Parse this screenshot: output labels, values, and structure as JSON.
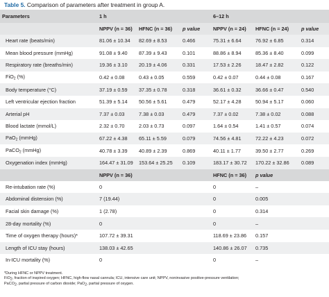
{
  "caption": {
    "label": "Table 5.",
    "text": "Comparison of parameters after treatment in group A."
  },
  "header": {
    "parameters": "Parameters",
    "period1": "1 h",
    "period2": "6–12 h",
    "cols": [
      "NPPV (n = 36)",
      "HFNC (n = 36)",
      "p value",
      "NPPV (n = 24)",
      "HFNC (n = 24)",
      "p value"
    ]
  },
  "rows1": [
    {
      "name": "Heart rate (beats/min)",
      "v": [
        "81.06 ± 10.34",
        "82.69 ± 8.53",
        "0.466",
        "75.31 ± 6.64",
        "76.92 ± 6.85",
        "0.314"
      ]
    },
    {
      "name": "Mean blood pressure (mmHg)",
      "v": [
        "91.08 ± 9.40",
        "87.39 ± 9.43",
        "0.101",
        "88.86 ± 8.94",
        "85.36 ± 8.40",
        "0.099"
      ]
    },
    {
      "name": "Respiratory rate (breaths/min)",
      "v": [
        "19.36 ± 3.10",
        "20.19 ± 4.06",
        "0.331",
        "17.53 ± 2.26",
        "18.47 ± 2.82",
        "0.122"
      ]
    },
    {
      "pre": "FiO",
      "sub": "2",
      "post": " (%)",
      "v": [
        "0.42 ± 0.08",
        "0.43 ± 0.05",
        "0.559",
        "0.42 ± 0.07",
        "0.44 ± 0.08",
        "0.167"
      ]
    },
    {
      "name": "Body temperature (°C)",
      "v": [
        "37.19 ± 0.59",
        "37.35 ± 0.78",
        "0.318",
        "36.61 ± 0.32",
        "36.66 ± 0.47",
        "0.540"
      ]
    },
    {
      "name": "Left ventricular ejection fraction",
      "v": [
        "51.39 ± 5.14",
        "50.56 ± 5.61",
        "0.479",
        "52.17 ± 4.28",
        "50.94 ± 5.17",
        "0.060"
      ]
    },
    {
      "name": "Arterial pH",
      "v": [
        "7.37 ± 0.03",
        "7.38 ± 0.03",
        "0.479",
        "7.37 ± 0.02",
        "7.38 ± 0.02",
        "0.088"
      ]
    },
    {
      "name": "Blood lactate (mmol/L)",
      "v": [
        "2.32 ± 0.70",
        "2.03 ± 0.73",
        "0.097",
        "1.64 ± 0.54",
        "1.41 ± 0.57",
        "0.074"
      ]
    },
    {
      "pre": "PaO",
      "sub": "2",
      "post": " (mmHg)",
      "v": [
        "67.22 ± 4.38",
        "65.11 ± 5.59",
        "0.079",
        "74.56 ± 4.81",
        "72.22 ± 4.23",
        "0.072"
      ]
    },
    {
      "pre": "PaCO",
      "sub": "2",
      "post": " (mmHg)",
      "v": [
        "40.78 ± 3.39",
        "40.89 ± 2.39",
        "0.869",
        "40.11 ± 1.77",
        "39.50 ± 2.77",
        "0.269"
      ]
    },
    {
      "name": "Oxygenation index (mmHg)",
      "v": [
        "164.47 ± 31.09",
        "153.64 ± 25.25",
        "0.109",
        "183.17 ± 30.72",
        "170.22 ± 32.86",
        "0.089"
      ]
    }
  ],
  "header2": {
    "cols": [
      "NPPV (n = 36)",
      "HFNC (n = 36)",
      "p value"
    ]
  },
  "rows2": [
    {
      "name": "Re-intubation rate (%)",
      "v": [
        "0",
        "0",
        "–"
      ]
    },
    {
      "name": "Abdominal distension (%)",
      "v": [
        "7 (19.44)",
        "0",
        "0.005"
      ]
    },
    {
      "name": "Facial skin damage (%)",
      "v": [
        "1 (2.78)",
        "0",
        "0.314"
      ]
    },
    {
      "name": "28-day mortality (%)",
      "v": [
        "0",
        "0",
        "–"
      ]
    },
    {
      "name": "Time of oxygen therapy (hours)*",
      "v": [
        "107.72 ± 39.31",
        "118.69 ± 23.86",
        "0.157"
      ]
    },
    {
      "name": "Length of ICU stay (hours)",
      "v": [
        "138.03 ± 42.65",
        "140.86 ± 26.07",
        "0.735"
      ]
    },
    {
      "name": "In-ICU mortality (%)",
      "v": [
        "0",
        "0",
        "–"
      ]
    }
  ],
  "notes": {
    "line1": "*During HFNC or NPPV treatment.",
    "line2_pre": "FiO",
    "line2_sub": "2",
    "line2_post": ", fraction of inspired oxygen; HFNC, high-flow nasal cannula; ICU, intensive care unit; NPPV, noninvasive positive-pressure ventilation;",
    "line3_a": "PaCO",
    "line3_sub1": "2",
    "line3_b": ", partial pressure of carbon dioxide; PaO",
    "line3_sub2": "2",
    "line3_c": ", partial pressure of oxygen."
  }
}
